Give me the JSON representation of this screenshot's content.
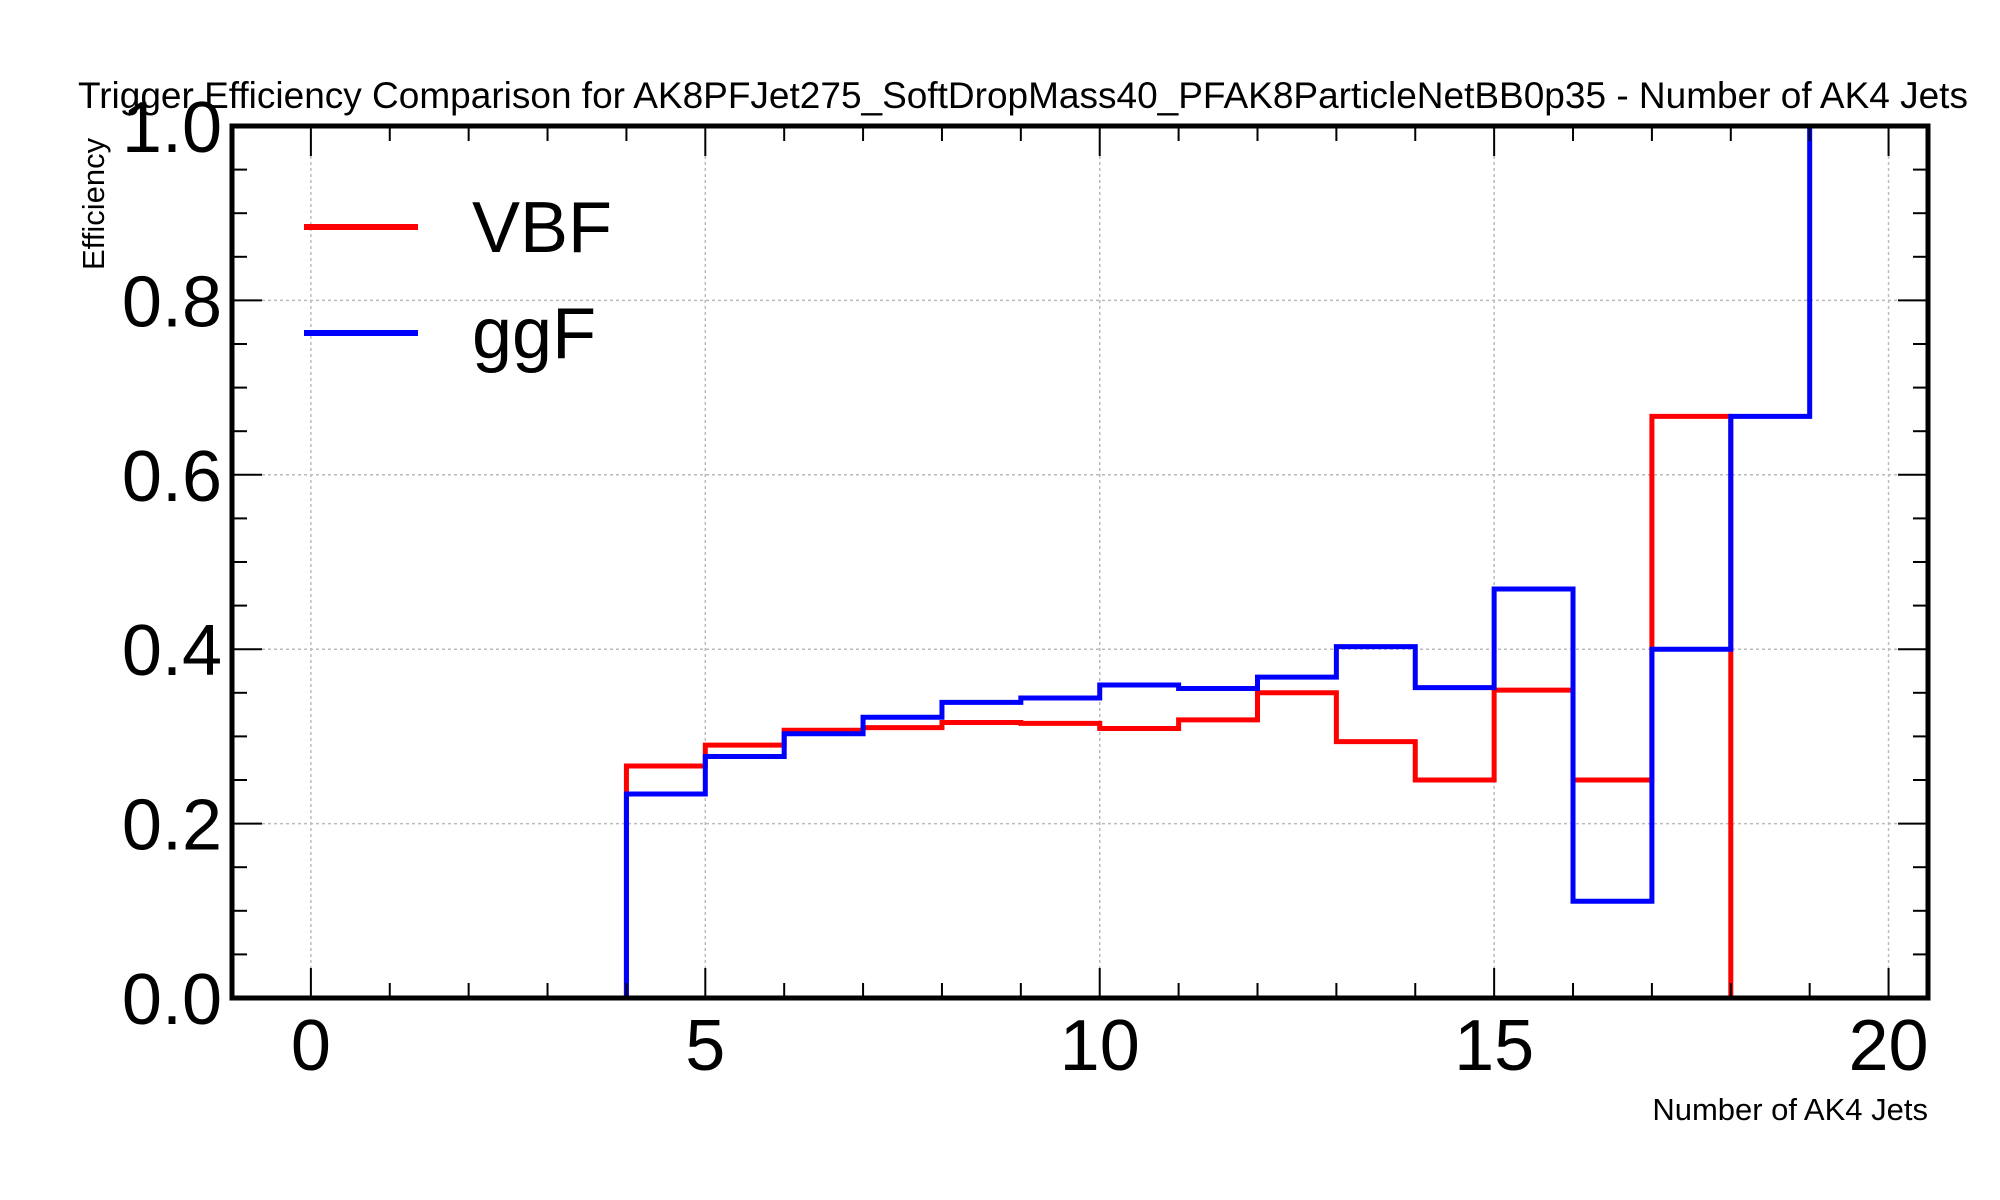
{
  "chart_data": {
    "type": "line",
    "title": "Trigger Efficiency Comparison for AK8PFJet275_SoftDropMass40_PFAK8ParticleNetBB0p35 - Number of AK4 Jets",
    "xlabel": "Number of AK4 Jets",
    "ylabel": "Efficiency",
    "xlim": [
      -1,
      20.5
    ],
    "ylim": [
      0,
      1.0
    ],
    "grid": true,
    "legend_position": "top-left",
    "x_ticks": [
      "0",
      "5",
      "10",
      "15",
      "20"
    ],
    "y_ticks": [
      "0.0",
      "0.2",
      "0.4",
      "0.6",
      "0.8",
      "1.0"
    ],
    "bin_edges": [
      0,
      1,
      2,
      3,
      4,
      5,
      6,
      7,
      8,
      9,
      10,
      11,
      12,
      13,
      14,
      15,
      16,
      17,
      18,
      19,
      20
    ],
    "series": [
      {
        "name": "VBF",
        "color": "#ff0000",
        "values": [
          0,
          0,
          0,
          0,
          0.266,
          0.29,
          0.307,
          0.31,
          0.316,
          0.315,
          0.309,
          0.319,
          0.35,
          0.294,
          0.25,
          0.353,
          0.25,
          0.667,
          0,
          0
        ]
      },
      {
        "name": "ggF",
        "color": "#0000ff",
        "values": [
          0,
          0,
          0,
          0,
          0.234,
          0.277,
          0.303,
          0.322,
          0.339,
          0.344,
          0.359,
          0.355,
          0.368,
          0.403,
          0.356,
          0.469,
          0.111,
          0.4,
          0.667,
          1.0
        ]
      }
    ]
  }
}
